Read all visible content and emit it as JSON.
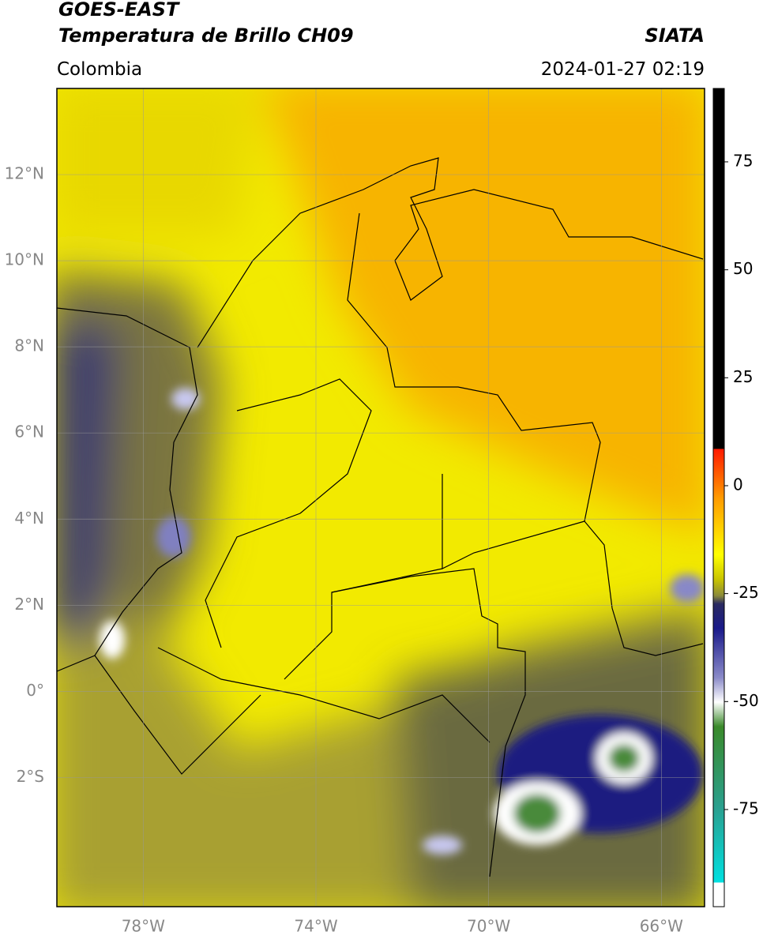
{
  "header": {
    "title": "GOES-EAST",
    "subtitle": "Temperatura de Brillo CH09",
    "source": "SIATA",
    "region": "Colombia",
    "datetime": "2024-01-27 02:19"
  },
  "map": {
    "xlim": [
      -80,
      -65
    ],
    "ylim": [
      -5,
      14
    ],
    "xticks": [
      {
        "value": -78,
        "label": "78°W"
      },
      {
        "value": -74,
        "label": "74°W"
      },
      {
        "value": -70,
        "label": "70°W"
      },
      {
        "value": -66,
        "label": "66°W"
      }
    ],
    "yticks": [
      {
        "value": 12,
        "label": "12°N"
      },
      {
        "value": 10,
        "label": "10°N"
      },
      {
        "value": 8,
        "label": "8°N"
      },
      {
        "value": 6,
        "label": "6°N"
      },
      {
        "value": 4,
        "label": "4°N"
      },
      {
        "value": 2,
        "label": "2°N"
      },
      {
        "value": 0,
        "label": "0°"
      },
      {
        "value": -2,
        "label": "2°S"
      }
    ]
  },
  "colorbar": {
    "lim": [
      -97.5,
      92
    ],
    "ticks": [
      75,
      50,
      25,
      0,
      -25,
      -50,
      -75
    ]
  }
}
